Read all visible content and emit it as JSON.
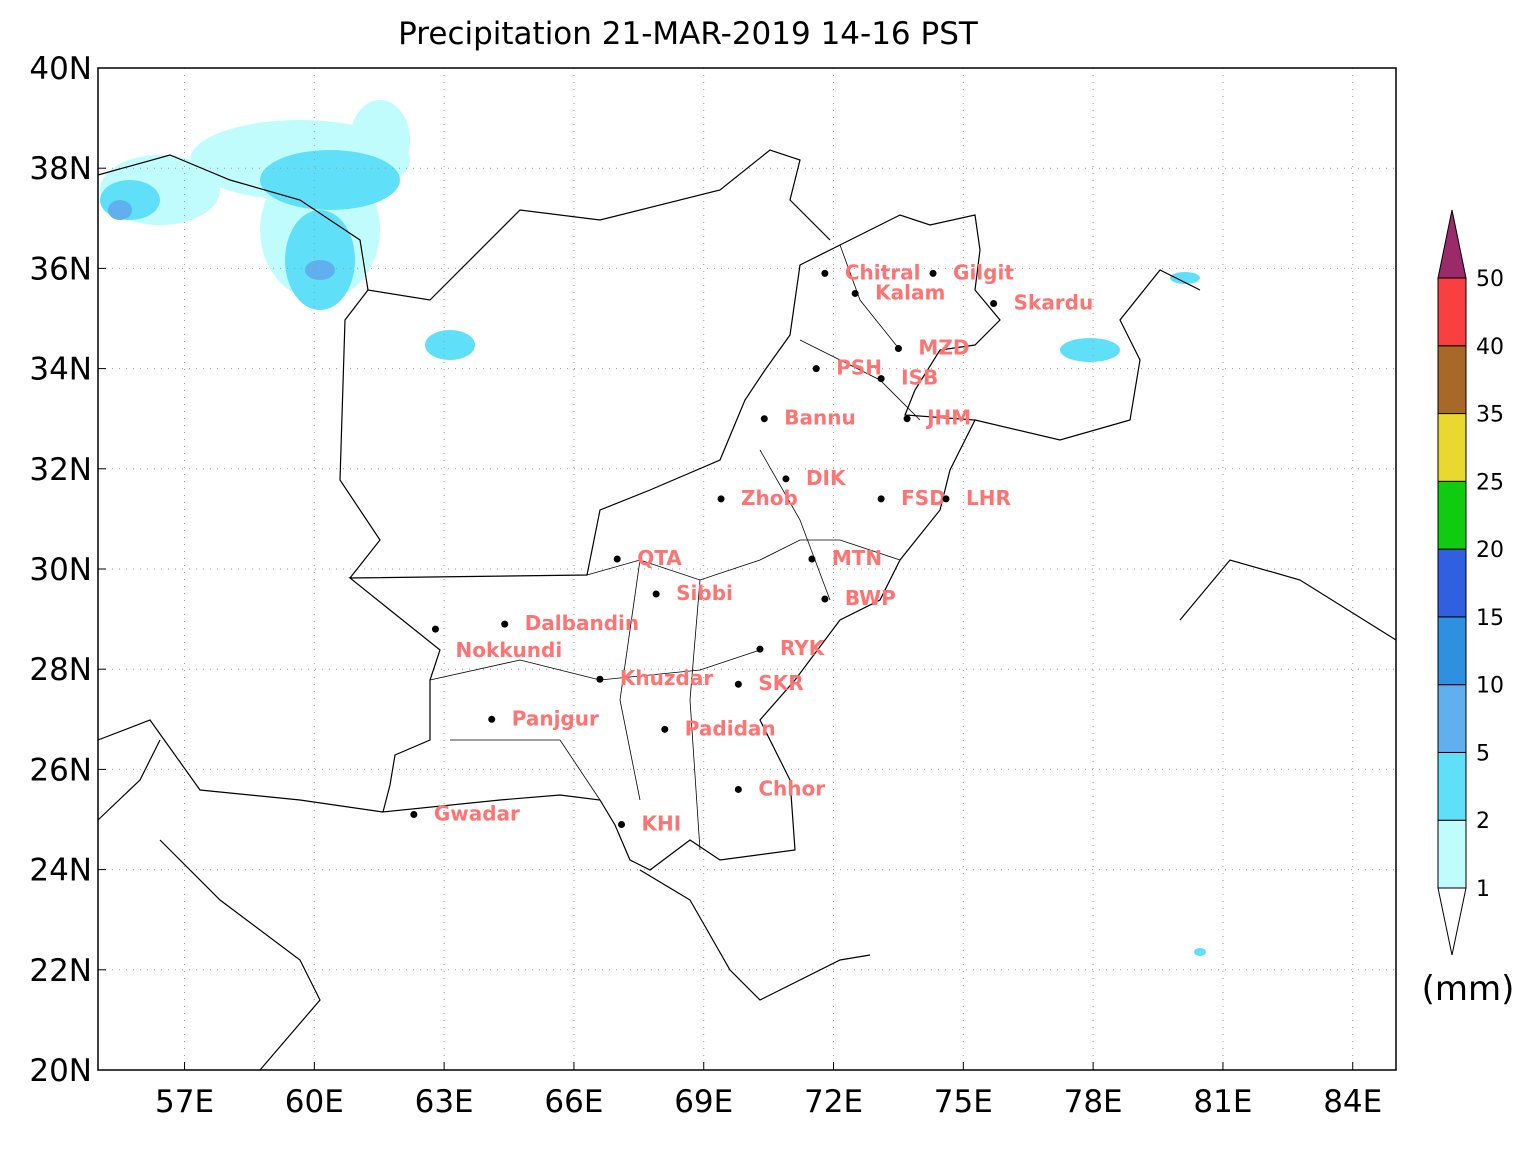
{
  "map": {
    "title": "Precipitation 21-MAR-2019 14-16 PST",
    "xlim": [
      55,
      85
    ],
    "ylim": [
      20,
      40
    ],
    "xticks": [
      {
        "value": 57,
        "label": "57E"
      },
      {
        "value": 60,
        "label": "60E"
      },
      {
        "value": 63,
        "label": "63E"
      },
      {
        "value": 66,
        "label": "66E"
      },
      {
        "value": 69,
        "label": "69E"
      },
      {
        "value": 72,
        "label": "72E"
      },
      {
        "value": 75,
        "label": "75E"
      },
      {
        "value": 78,
        "label": "78E"
      },
      {
        "value": 81,
        "label": "81E"
      },
      {
        "value": 84,
        "label": "84E"
      }
    ],
    "yticks": [
      {
        "value": 20,
        "label": "20N"
      },
      {
        "value": 22,
        "label": "22N"
      },
      {
        "value": 24,
        "label": "24N"
      },
      {
        "value": 26,
        "label": "26N"
      },
      {
        "value": 28,
        "label": "28N"
      },
      {
        "value": 30,
        "label": "30N"
      },
      {
        "value": 32,
        "label": "32N"
      },
      {
        "value": 34,
        "label": "34N"
      },
      {
        "value": 36,
        "label": "36N"
      },
      {
        "value": 38,
        "label": "38N"
      },
      {
        "value": 40,
        "label": "40N"
      }
    ],
    "grid": true,
    "colorbar": {
      "unit": "(mm)",
      "levels": [
        1,
        2,
        5,
        10,
        15,
        20,
        25,
        35,
        40,
        50
      ],
      "colors": [
        "#c0fcfc",
        "#60e0f8",
        "#60b0f0",
        "#3090e0",
        "#3060e0",
        "#10cc10",
        "#e8d830",
        "#a86828",
        "#f84040",
        "#9a2a6a"
      ]
    },
    "cities": [
      {
        "name": "Chitral",
        "lon": 71.8,
        "lat": 35.9
      },
      {
        "name": "Gilgit",
        "lon": 74.3,
        "lat": 35.9
      },
      {
        "name": "Kalam",
        "lon": 72.5,
        "lat": 35.5
      },
      {
        "name": "Skardu",
        "lon": 75.7,
        "lat": 35.3
      },
      {
        "name": "MZD",
        "lon": 73.5,
        "lat": 34.4
      },
      {
        "name": "PSH",
        "lon": 71.6,
        "lat": 34.0
      },
      {
        "name": "ISB",
        "lon": 73.1,
        "lat": 33.8
      },
      {
        "name": "Bannu",
        "lon": 70.4,
        "lat": 33.0
      },
      {
        "name": "JHM",
        "lon": 73.7,
        "lat": 33.0
      },
      {
        "name": "DIK",
        "lon": 70.9,
        "lat": 31.8
      },
      {
        "name": "FSD",
        "lon": 73.1,
        "lat": 31.4
      },
      {
        "name": "LHR",
        "lon": 74.6,
        "lat": 31.4
      },
      {
        "name": "Zhob",
        "lon": 69.4,
        "lat": 31.4
      },
      {
        "name": "MTN",
        "lon": 71.5,
        "lat": 30.2
      },
      {
        "name": "QTA",
        "lon": 67.0,
        "lat": 30.2
      },
      {
        "name": "Sibbi",
        "lon": 67.9,
        "lat": 29.5
      },
      {
        "name": "BWP",
        "lon": 71.8,
        "lat": 29.4
      },
      {
        "name": "Dalbandin",
        "lon": 64.4,
        "lat": 28.9
      },
      {
        "name": "Nokkundi",
        "lon": 62.8,
        "lat": 28.8
      },
      {
        "name": "RYK",
        "lon": 70.3,
        "lat": 28.4
      },
      {
        "name": "Khuzdar",
        "lon": 66.6,
        "lat": 27.8
      },
      {
        "name": "SKR",
        "lon": 69.8,
        "lat": 27.7
      },
      {
        "name": "Padidan",
        "lon": 68.1,
        "lat": 26.8
      },
      {
        "name": "Panjgur",
        "lon": 64.1,
        "lat": 27.0
      },
      {
        "name": "Chhor",
        "lon": 69.8,
        "lat": 25.6
      },
      {
        "name": "Gwadar",
        "lon": 62.3,
        "lat": 25.1
      },
      {
        "name": "KHI",
        "lon": 67.1,
        "lat": 24.9
      }
    ]
  }
}
